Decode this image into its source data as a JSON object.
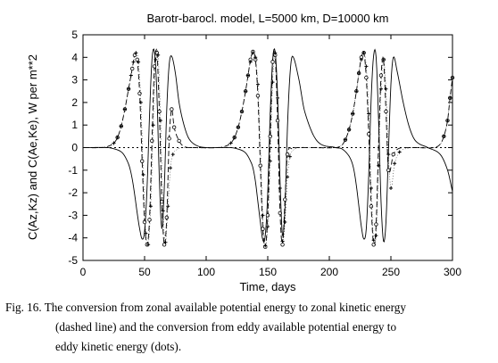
{
  "chart_data": {
    "type": "line",
    "title": "Barotr-barocl. model, L=5000 km, D=10000 km",
    "xlabel": "Time, days",
    "ylabel": "C(Az,Kz) and C(Ae,Ke), W per m**2",
    "xlim": [
      0,
      300
    ],
    "ylim": [
      -5,
      5
    ],
    "x_ticks": [
      0,
      50,
      100,
      150,
      200,
      250,
      300
    ],
    "y_ticks": [
      -5,
      -4,
      -3,
      -2,
      -1,
      0,
      1,
      2,
      3,
      4,
      5
    ],
    "series": [
      {
        "style": "solid",
        "x": [
          0,
          20,
          25,
          30,
          33,
          36,
          38,
          40,
          42,
          44,
          46,
          48,
          50,
          52,
          54,
          56,
          58,
          60,
          62,
          64,
          66,
          68,
          70,
          72,
          75,
          78,
          82,
          86,
          92,
          100,
          110,
          120,
          125,
          130,
          133,
          136,
          138,
          140,
          142,
          144,
          146,
          148,
          150,
          152,
          154,
          156,
          158,
          160,
          162,
          164,
          166,
          168,
          170,
          175,
          180,
          190,
          205,
          210,
          215,
          218,
          220,
          222,
          224,
          226,
          228,
          230,
          232,
          234,
          236,
          238,
          240,
          242,
          244,
          246,
          248,
          250,
          252,
          255,
          260,
          265,
          270,
          280,
          290,
          296,
          300
        ],
        "y": [
          0,
          0,
          -0.05,
          -0.15,
          -0.3,
          -0.6,
          -0.9,
          -1.4,
          -2.1,
          -2.9,
          -3.6,
          -4.05,
          -3.7,
          -1.8,
          1.4,
          3.9,
          4.25,
          2.4,
          -1.4,
          -3.6,
          -1.8,
          1.7,
          3.7,
          4.05,
          3.3,
          2.0,
          1.0,
          0.4,
          0.1,
          0,
          0,
          0,
          -0.05,
          -0.15,
          -0.3,
          -0.6,
          -0.9,
          -1.5,
          -2.4,
          -3.3,
          -4.1,
          -3.9,
          -2.0,
          1.5,
          3.9,
          4.25,
          2.3,
          -1.5,
          -3.9,
          -2.7,
          0.9,
          3.2,
          4.05,
          3.1,
          1.6,
          0.3,
          0,
          -0.05,
          -0.3,
          -0.6,
          -1.0,
          -1.7,
          -2.6,
          -3.5,
          -4.05,
          -3.6,
          -1.2,
          2.2,
          4.1,
          4.0,
          1.2,
          -2.4,
          -4.15,
          -3.3,
          -0.2,
          2.8,
          4.0,
          3.4,
          2.0,
          0.9,
          0.3,
          0,
          -0.3,
          -1.0,
          -1.95
        ]
      },
      {
        "style": "dashed",
        "x": [
          0,
          15,
          20,
          25,
          28,
          31,
          34,
          37,
          40,
          42,
          44,
          46,
          48,
          50,
          52,
          54,
          56,
          58,
          60,
          62,
          64,
          66,
          68,
          70,
          72,
          74,
          78,
          82,
          90,
          110,
          115,
          120,
          123,
          126,
          129,
          132,
          134,
          136,
          138,
          140,
          142,
          144,
          146,
          148,
          150,
          152,
          154,
          156,
          158,
          160,
          162,
          164,
          166,
          170,
          175,
          185,
          205,
          210,
          213,
          216,
          219,
          222,
          224,
          226,
          228,
          230,
          232,
          234,
          236,
          238,
          240,
          242,
          244,
          246,
          248,
          252,
          256,
          262,
          270,
          285,
          290,
          293,
          296,
          298,
          300
        ],
        "y": [
          0,
          0,
          0.05,
          0.2,
          0.45,
          0.95,
          1.7,
          2.6,
          3.5,
          4.1,
          3.9,
          2.4,
          -0.6,
          -3.3,
          -4.3,
          -3.2,
          0.3,
          3.6,
          4.2,
          1.6,
          -2.4,
          -4.3,
          -3.1,
          0.4,
          1.7,
          0.9,
          0.3,
          0.05,
          0,
          0,
          0.05,
          0.2,
          0.45,
          0.9,
          1.6,
          2.5,
          3.2,
          3.9,
          4.25,
          3.9,
          2.3,
          -0.8,
          -3.6,
          -4.4,
          -3.0,
          0.5,
          3.8,
          4.1,
          1.2,
          -2.9,
          -4.3,
          -2.3,
          -0.3,
          -0.05,
          0,
          0,
          0,
          0.1,
          0.35,
          0.8,
          1.5,
          2.5,
          3.3,
          4.0,
          4.2,
          3.1,
          0.6,
          -2.6,
          -4.3,
          -3.4,
          0.2,
          3.2,
          3.9,
          1.6,
          -1.0,
          -0.3,
          -0.05,
          0,
          0,
          0,
          0.15,
          0.5,
          1.2,
          2.2,
          3.1
        ]
      },
      {
        "style": "dots",
        "x": [
          0,
          10,
          20,
          25,
          28,
          31,
          34,
          37,
          39,
          41,
          43,
          45,
          47,
          49,
          51,
          53,
          55,
          57,
          59,
          61,
          63,
          65,
          67,
          69,
          71,
          73,
          76,
          80,
          86,
          100,
          115,
          120,
          123,
          126,
          129,
          132,
          134,
          136,
          138,
          140,
          142,
          144,
          146,
          148,
          150,
          152,
          154,
          156,
          158,
          160,
          162,
          164,
          166,
          168,
          171,
          176,
          190,
          205,
          210,
          213,
          216,
          219,
          222,
          224,
          226,
          228,
          230,
          232,
          234,
          236,
          238,
          240,
          242,
          244,
          246,
          248,
          250,
          253,
          257,
          262,
          270,
          285,
          290,
          293,
          296,
          298,
          300
        ],
        "y": [
          0,
          0,
          0.05,
          0.2,
          0.45,
          0.95,
          1.7,
          2.6,
          3.2,
          3.8,
          4.2,
          3.8,
          2.0,
          -1.2,
          -3.8,
          -4.3,
          -2.6,
          1.0,
          3.9,
          4.1,
          1.2,
          -2.8,
          -4.2,
          -2.6,
          -0.9,
          -0.3,
          -0.1,
          0,
          0,
          0,
          0.05,
          0.2,
          0.45,
          0.9,
          1.6,
          2.5,
          3.2,
          3.8,
          4.2,
          4.0,
          2.8,
          0.1,
          -3.0,
          -4.35,
          -3.5,
          -0.6,
          2.9,
          4.2,
          2.2,
          -1.8,
          -4.15,
          -3.3,
          -1.3,
          -0.4,
          -0.1,
          0,
          0,
          0,
          0.1,
          0.35,
          0.8,
          1.5,
          2.5,
          3.3,
          3.9,
          4.2,
          3.6,
          1.5,
          -1.8,
          -4.1,
          -3.9,
          -0.8,
          2.6,
          3.9,
          2.6,
          -0.3,
          -1.8,
          -0.7,
          -0.2,
          -0.05,
          0,
          0,
          0.15,
          0.5,
          1.2,
          2.2,
          3.1
        ]
      }
    ]
  },
  "caption": {
    "line1": "Fig. 16.  The conversion from zonal available potential energy to zonal kinetic energy",
    "line2": "(dashed line) and the conversion from eddy available potential energy to",
    "line3": "eddy kinetic energy (dots)."
  }
}
